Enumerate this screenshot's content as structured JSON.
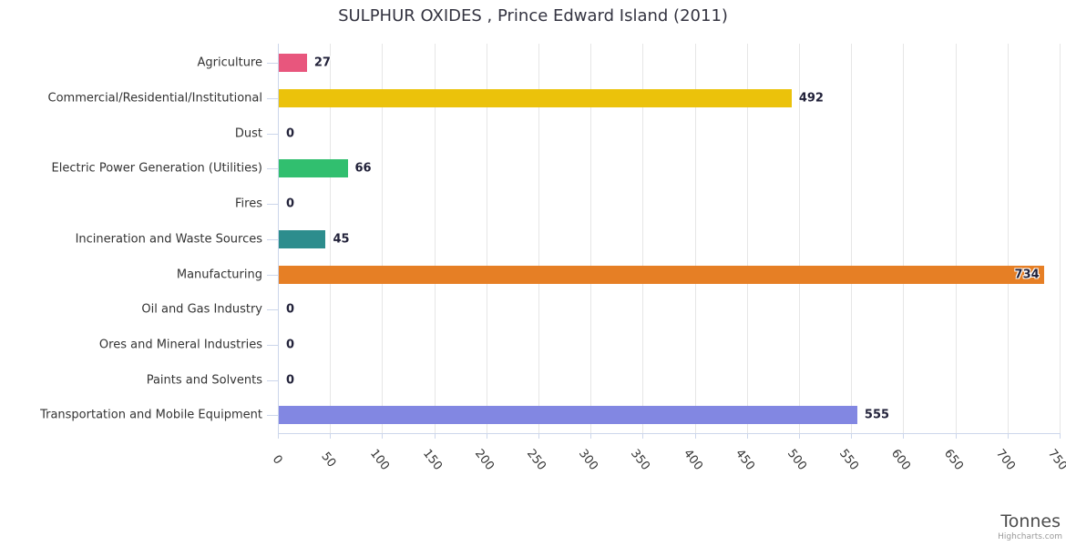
{
  "title": "SULPHUR OXIDES , Prince Edward Island (2011)",
  "credit": "Highcharts.com",
  "chart_data": {
    "type": "bar",
    "orientation": "horizontal",
    "title": "SULPHUR OXIDES , Prince Edward Island (2011)",
    "categories": [
      "Agriculture",
      "Commercial/Residential/Institutional",
      "Dust",
      "Electric Power Generation (Utilities)",
      "Fires",
      "Incineration and Waste Sources",
      "Manufacturing",
      "Oil and Gas Industry",
      "Ores and Mineral Industries",
      "Paints and Solvents",
      "Transportation and Mobile Equipment"
    ],
    "values": [
      27,
      492,
      0,
      66,
      0,
      45,
      734,
      0,
      0,
      0,
      555
    ],
    "bar_colors": [
      "#e8567d",
      "#ebc20b",
      null,
      "#31bf6f",
      null,
      "#2d8d8d",
      "#e67f25",
      null,
      null,
      null,
      "#8287e2"
    ],
    "data_labels": true,
    "xlabel": "Tonnes",
    "xlim": [
      0,
      750
    ],
    "tick_interval": 50,
    "tick_labels": [
      "0",
      "50",
      "100",
      "150",
      "200",
      "250",
      "300",
      "350",
      "400",
      "450",
      "500",
      "550",
      "600",
      "650",
      "700",
      "750"
    ],
    "grid": true,
    "legend": "none",
    "colors": {
      "axis_line": "#ccd6eb",
      "grid_line": "#e6e6e6",
      "category_label": "#333333",
      "value_label": "#22223a",
      "title": "#333340",
      "xlabel": "#4d4d4d",
      "credit": "#999999"
    }
  }
}
